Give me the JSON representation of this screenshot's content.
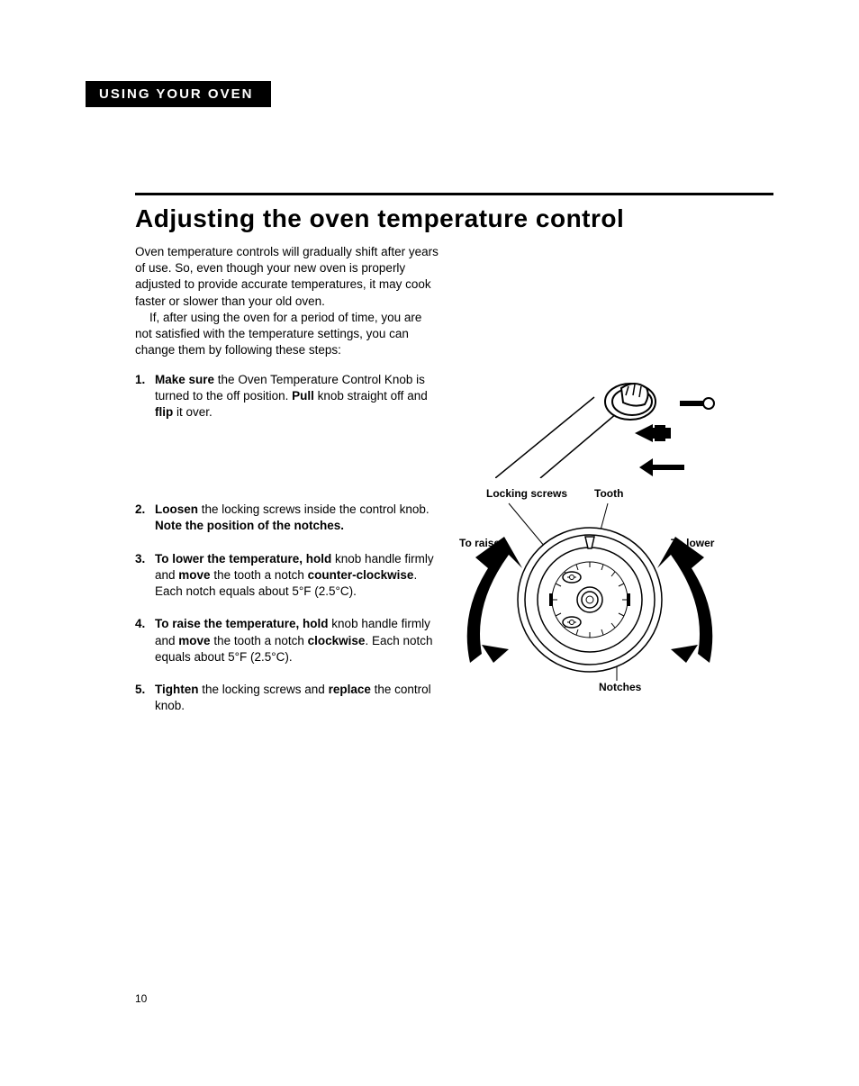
{
  "header": {
    "section_tab": "USING YOUR OVEN"
  },
  "title": "Adjusting the oven temperature control",
  "intro": {
    "p1": "Oven temperature controls will gradually shift after years of use. So, even though your new oven is properly adjusted to provide accurate temperatures, it may cook faster or slower than your old oven.",
    "p2": "If, after using the oven for a period of time, you are not satisfied with the temperature settings, you can change them by following these steps:"
  },
  "steps": [
    {
      "num": "1.",
      "parts": [
        {
          "b": true,
          "t": "Make sure"
        },
        {
          "b": false,
          "t": " the Oven Temperature Control Knob is turned to the off position. "
        },
        {
          "b": true,
          "t": "Pull"
        },
        {
          "b": false,
          "t": " knob straight off and "
        },
        {
          "b": true,
          "t": "flip"
        },
        {
          "b": false,
          "t": " it over."
        }
      ],
      "gap": "lg"
    },
    {
      "num": "2.",
      "parts": [
        {
          "b": true,
          "t": "Loosen"
        },
        {
          "b": false,
          "t": " the locking screws inside the control knob. "
        },
        {
          "b": true,
          "t": "Note the position of the notches."
        }
      ]
    },
    {
      "num": "3.",
      "parts": [
        {
          "b": true,
          "t": "To lower the temperature, hold"
        },
        {
          "b": false,
          "t": " knob handle firmly and "
        },
        {
          "b": true,
          "t": "move"
        },
        {
          "b": false,
          "t": " the tooth a notch "
        },
        {
          "b": true,
          "t": "counter-clockwise"
        },
        {
          "b": false,
          "t": ". Each notch equals about 5°F (2.5°C)."
        }
      ]
    },
    {
      "num": "4.",
      "parts": [
        {
          "b": true,
          "t": "To raise the temperature, hold"
        },
        {
          "b": false,
          "t": " knob handle firmly and "
        },
        {
          "b": true,
          "t": "move"
        },
        {
          "b": false,
          "t": " the tooth a notch "
        },
        {
          "b": true,
          "t": "clockwise"
        },
        {
          "b": false,
          "t": ". Each notch equals about 5°F (2.5°C)."
        }
      ]
    },
    {
      "num": "5.",
      "parts": [
        {
          "b": true,
          "t": "Tighten"
        },
        {
          "b": false,
          "t": " the locking screws and "
        },
        {
          "b": true,
          "t": "replace"
        },
        {
          "b": false,
          "t": " the control knob."
        }
      ]
    }
  ],
  "figure2_labels": {
    "locking_screws": "Locking screws",
    "tooth": "Tooth",
    "to_raise": "To raise",
    "to_lower": "To lower",
    "notches": "Notches"
  },
  "page_number": "10",
  "colors": {
    "black": "#000000",
    "white": "#ffffff"
  }
}
